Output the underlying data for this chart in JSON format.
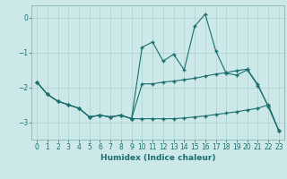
{
  "xlabel": "Humidex (Indice chaleur)",
  "background_color": "#cce8e8",
  "grid_color": "#b0d4d4",
  "line_color": "#1a6e6e",
  "xlim": [
    -0.5,
    23.5
  ],
  "ylim": [
    -3.5,
    0.35
  ],
  "yticks": [
    0,
    -1,
    -2,
    -3
  ],
  "xticks": [
    0,
    1,
    2,
    3,
    4,
    5,
    6,
    7,
    8,
    9,
    10,
    11,
    12,
    13,
    14,
    15,
    16,
    17,
    18,
    19,
    20,
    21,
    22,
    23
  ],
  "line1_x": [
    0,
    1,
    2,
    3,
    4,
    5,
    6,
    7,
    8,
    9,
    10,
    11,
    12,
    13,
    14,
    15,
    16,
    17,
    18,
    19,
    20,
    21,
    22,
    23
  ],
  "line1_y": [
    -1.85,
    -2.2,
    -2.4,
    -2.5,
    -2.6,
    -2.85,
    -2.8,
    -2.85,
    -2.8,
    -2.9,
    -0.85,
    -0.7,
    -1.25,
    -1.05,
    -1.5,
    -0.25,
    0.1,
    -0.95,
    -1.6,
    -1.65,
    -1.5,
    -1.95,
    -2.55,
    -3.25
  ],
  "line2_x": [
    0,
    1,
    2,
    3,
    4,
    5,
    6,
    7,
    8,
    9,
    10,
    11,
    12,
    13,
    14,
    15,
    16,
    17,
    18,
    19,
    20,
    21,
    22,
    23
  ],
  "line2_y": [
    -1.85,
    -2.2,
    -2.4,
    -2.5,
    -2.6,
    -2.85,
    -2.8,
    -2.85,
    -2.8,
    -2.9,
    -1.9,
    -1.9,
    -1.85,
    -1.82,
    -1.78,
    -1.74,
    -1.68,
    -1.62,
    -1.58,
    -1.52,
    -1.48,
    -1.92,
    -2.55,
    -3.25
  ],
  "line3_x": [
    0,
    1,
    2,
    3,
    4,
    5,
    6,
    7,
    8,
    9,
    10,
    11,
    12,
    13,
    14,
    15,
    16,
    17,
    18,
    19,
    20,
    21,
    22,
    23
  ],
  "line3_y": [
    -1.85,
    -2.2,
    -2.4,
    -2.5,
    -2.6,
    -2.85,
    -2.8,
    -2.85,
    -2.8,
    -2.9,
    -2.9,
    -2.9,
    -2.9,
    -2.9,
    -2.88,
    -2.85,
    -2.82,
    -2.78,
    -2.74,
    -2.7,
    -2.65,
    -2.6,
    -2.5,
    -3.25
  ]
}
